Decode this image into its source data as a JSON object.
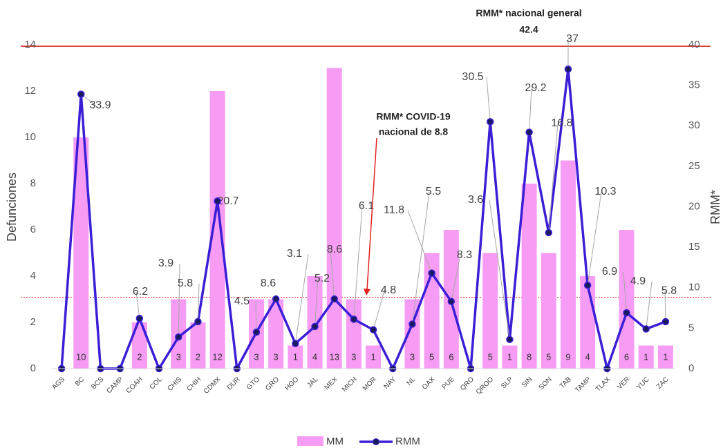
{
  "chart_data": {
    "type": "bar",
    "categories": [
      "AGS",
      "BC",
      "BCS",
      "CAMP",
      "COAH",
      "COL",
      "CHIS",
      "CHIH",
      "CDMX",
      "DUR",
      "GTO",
      "GRO",
      "HGO",
      "JAL",
      "MEX",
      "MICH",
      "MOR",
      "NAY",
      "NL",
      "OAX",
      "PUE",
      "QRO",
      "QROO",
      "SLP",
      "SIN",
      "SON",
      "TAB",
      "TAMP",
      "TLAX",
      "VER",
      "YUC",
      "ZAC"
    ],
    "ylabel": "Defunciones",
    "y2label": "RMM*",
    "ylim": [
      0,
      14
    ],
    "yticks": [
      0,
      2,
      4,
      6,
      8,
      10,
      12,
      14
    ],
    "y2lim": [
      0,
      40
    ],
    "y2ticks": [
      0,
      5,
      10,
      15,
      20,
      25,
      30,
      35,
      40
    ],
    "series": [
      {
        "name": "MM",
        "type": "bar",
        "color": "#f79cf5",
        "values": [
          0,
          10,
          0,
          0,
          2,
          0,
          3,
          2,
          12,
          0,
          3,
          3,
          1,
          4,
          13,
          3,
          1,
          0,
          3,
          5,
          6,
          0,
          5,
          1,
          8,
          5,
          9,
          4,
          0,
          6,
          1,
          1
        ]
      },
      {
        "name": "RMM",
        "type": "line",
        "axis": "y2",
        "color": "#3a1fd6",
        "values": [
          0,
          33.9,
          0,
          0,
          6.2,
          0,
          3.9,
          5.8,
          20.7,
          0,
          4.5,
          8.6,
          3.1,
          5.2,
          8.6,
          6.1,
          4.8,
          0,
          5.5,
          11.8,
          8.3,
          0,
          30.5,
          3.6,
          29.2,
          16.8,
          37,
          10.3,
          0,
          6.9,
          4.9,
          5.8
        ]
      }
    ],
    "annotations": [
      {
        "text": "RMM* nacional  general",
        "value": 42.4,
        "value_label": "42.4"
      },
      {
        "text": "RMM* COVID-19",
        "text2": "nacional de 8.8",
        "value": 8.8
      }
    ]
  }
}
